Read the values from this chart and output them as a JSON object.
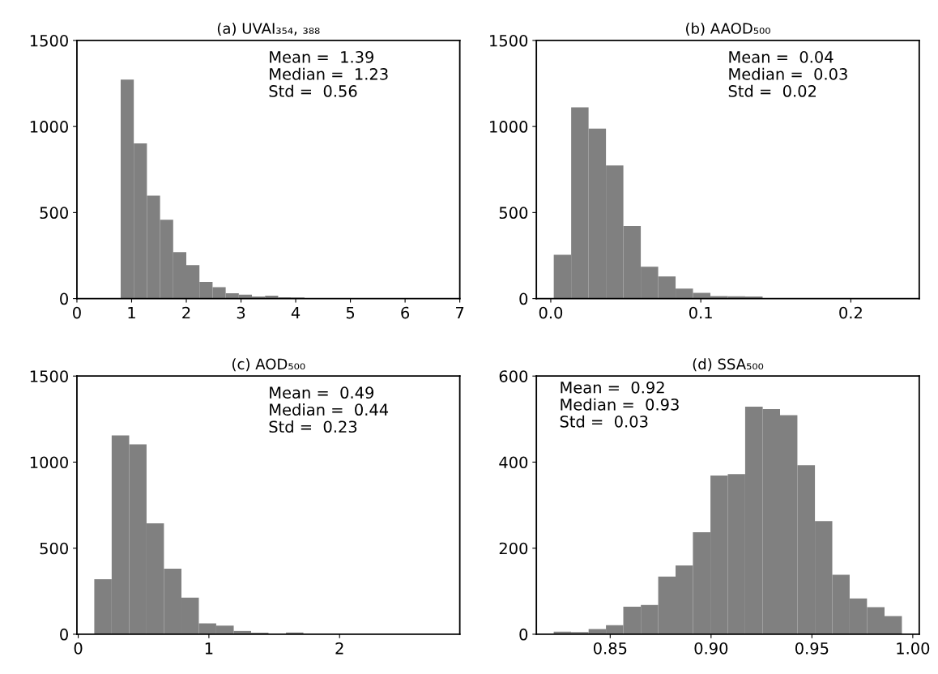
{
  "chart_data": [
    {
      "type": "histogram",
      "title": "(a) UVAI₃₅₄, ₃₈₈",
      "color": "#808080",
      "grid": false,
      "bins": [
        0.8,
        1.04,
        1.28,
        1.52,
        1.76,
        2.0,
        2.24,
        2.48,
        2.72,
        2.96,
        3.2,
        3.44,
        3.68,
        3.92,
        4.16,
        4.4,
        4.64,
        4.88,
        5.12,
        5.36,
        5.6
      ],
      "values": [
        1273,
        902,
        598,
        458,
        270,
        195,
        97,
        67,
        31,
        23,
        12,
        17,
        8,
        6,
        2,
        1,
        1,
        0,
        0,
        1
      ],
      "xlim": [
        0,
        7
      ],
      "xticks": [
        0,
        1,
        2,
        3,
        4,
        5,
        6,
        7
      ],
      "ylim": [
        0,
        1500
      ],
      "yticks": [
        0,
        500,
        1000,
        1500
      ],
      "annotations": [
        "Mean =  1.39\nMedian =  1.23\nStd =  0.56"
      ]
    },
    {
      "type": "histogram",
      "title": "(b) AAOD₅₀₀",
      "color": "#808080",
      "grid": false,
      "bins": [
        0.002,
        0.0136,
        0.0252,
        0.0368,
        0.0484,
        0.06,
        0.0716,
        0.0832,
        0.0948,
        0.1064,
        0.118,
        0.1296,
        0.1412,
        0.1528,
        0.1644,
        0.176,
        0.1876,
        0.1992,
        0.2108,
        0.2224,
        0.234
      ],
      "values": [
        255,
        1111,
        988,
        774,
        422,
        185,
        129,
        58,
        34,
        15,
        14,
        12,
        3,
        2,
        1,
        1,
        0,
        0,
        0,
        1
      ],
      "xlim": [
        -0.0096,
        0.2456
      ],
      "xticks": [
        {
          "value": 0.0,
          "label": "0.0"
        },
        0.1,
        0.2
      ],
      "ylim": [
        0,
        1500
      ],
      "yticks": [
        0,
        500,
        1000,
        1500
      ],
      "annotations": [
        "Mean =  0.04\nMedian =  0.03\nStd =  0.02"
      ]
    },
    {
      "type": "histogram",
      "title": "(c) AOD₅₀₀",
      "color": "#808080",
      "grid": false,
      "bins": [
        0.123,
        0.256,
        0.39,
        0.523,
        0.656,
        0.79,
        0.923,
        1.056,
        1.19,
        1.323,
        1.456,
        1.59,
        1.723,
        1.856,
        1.99,
        2.123,
        2.256,
        2.39,
        2.523,
        2.656,
        2.79
      ],
      "values": [
        320,
        1155,
        1103,
        644,
        381,
        213,
        63,
        50,
        19,
        9,
        3,
        10,
        3,
        2,
        0,
        0,
        0,
        0,
        0,
        1
      ],
      "xlim": [
        -0.01,
        2.92
      ],
      "xticks": [
        0,
        1,
        2
      ],
      "ylim": [
        0,
        1500
      ],
      "yticks": [
        0,
        500,
        1000,
        1500
      ],
      "annotations": [
        "Mean =  0.49\nMedian =  0.44\nStd =  0.23"
      ]
    },
    {
      "type": "histogram",
      "title": "(d) SSA₅₀₀",
      "color": "#808080",
      "grid": false,
      "bins": [
        0.822,
        0.8306,
        0.8393,
        0.8479,
        0.8565,
        0.8652,
        0.8738,
        0.8824,
        0.891,
        0.8997,
        0.9083,
        0.9169,
        0.9256,
        0.9342,
        0.9428,
        0.9515,
        0.9601,
        0.9687,
        0.9773,
        0.986,
        0.9946
      ],
      "values": [
        6,
        5,
        12,
        21,
        64,
        68,
        134,
        160,
        237,
        369,
        372,
        529,
        523,
        509,
        393,
        263,
        138,
        83,
        63,
        42
      ],
      "xlim": [
        0.8134,
        1.0032
      ],
      "xticks": [
        0.85,
        {
          "value": 0.9,
          "label": "0.90"
        },
        0.95,
        {
          "value": 1.0,
          "label": "1.00"
        }
      ],
      "ylim": [
        0,
        600
      ],
      "yticks": [
        0,
        200,
        400,
        600
      ],
      "annotations": [
        "Mean =  0.92\nMedian =  0.93\nStd =  0.03"
      ]
    }
  ]
}
